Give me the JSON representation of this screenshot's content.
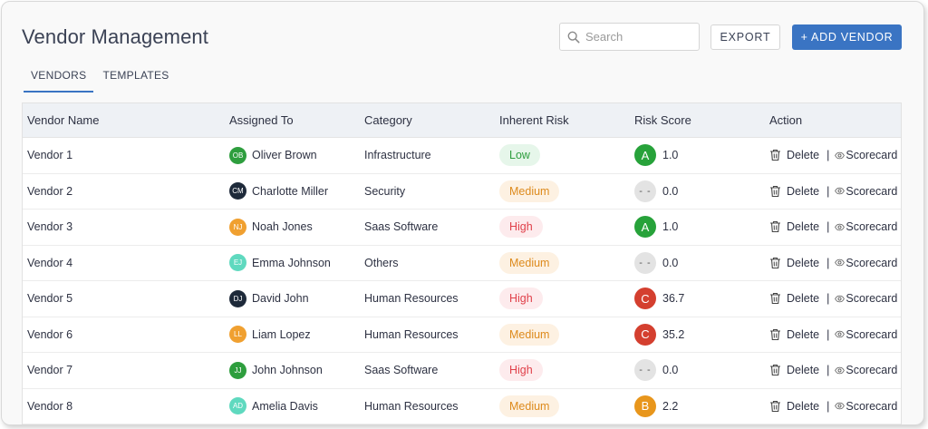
{
  "header": {
    "title": "Vendor Management",
    "search_placeholder": "Search",
    "export_label": "EXPORT",
    "add_label": "+ ADD VENDOR"
  },
  "tabs": [
    {
      "label": "VENDORS",
      "active": true
    },
    {
      "label": "TEMPLATES",
      "active": false
    }
  ],
  "table": {
    "columns": [
      "Vendor Name",
      "Assigned To",
      "Category",
      "Inherent Risk",
      "Risk Score",
      "Action"
    ],
    "delete_label": "Delete",
    "separator": "|",
    "scorecard_label": "Scorecard",
    "rows": [
      {
        "name": "Vendor 1",
        "initials": "OB",
        "assignee": "Oliver Brown",
        "avatar_color": "#2e9e3e",
        "category": "Infrastructure",
        "risk": "Low",
        "score_grade": "A",
        "score": "1.0"
      },
      {
        "name": "Vendor 2",
        "initials": "CM",
        "assignee": "Charlotte Miller",
        "avatar_color": "#1e2a3a",
        "category": "Security",
        "risk": "Medium",
        "score_grade": "- -",
        "score": "0.0"
      },
      {
        "name": "Vendor 3",
        "initials": "NJ",
        "assignee": "Noah Jones",
        "avatar_color": "#f0a030",
        "category": "Saas Software",
        "risk": "High",
        "score_grade": "A",
        "score": "1.0"
      },
      {
        "name": "Vendor 4",
        "initials": "EJ",
        "assignee": "Emma Johnson",
        "avatar_color": "#5fd9bf",
        "category": "Others",
        "risk": "Medium",
        "score_grade": "- -",
        "score": "0.0"
      },
      {
        "name": "Vendor 5",
        "initials": "DJ",
        "assignee": "David John",
        "avatar_color": "#1e2a3a",
        "category": "Human Resources",
        "risk": "High",
        "score_grade": "C",
        "score": "36.7"
      },
      {
        "name": "Vendor 6",
        "initials": "LL",
        "assignee": "Liam Lopez",
        "avatar_color": "#f0a030",
        "category": "Human Resources",
        "risk": "Medium",
        "score_grade": "C",
        "score": "35.2"
      },
      {
        "name": "Vendor 7",
        "initials": "JJ",
        "assignee": "John Johnson",
        "avatar_color": "#2e9e3e",
        "category": "Saas Software",
        "risk": "High",
        "score_grade": "- -",
        "score": "0.0"
      },
      {
        "name": "Vendor 8",
        "initials": "AD",
        "assignee": "Amelia Davis",
        "avatar_color": "#5fd9bf",
        "category": "Human Resources",
        "risk": "Medium",
        "score_grade": "B",
        "score": "2.2"
      }
    ]
  },
  "colors": {
    "accent": "#3a74c3",
    "risk_low_bg": "#e6f6ea",
    "risk_low_text": "#2e9e3e",
    "risk_medium_bg": "#fdf1e2",
    "risk_medium_text": "#dd8a1c",
    "risk_high_bg": "#fdebed",
    "risk_high_text": "#e0404a",
    "grade_A": "#27a23a",
    "grade_B": "#e8961c",
    "grade_C": "#d43f2f"
  },
  "icons": {
    "search": "search-icon",
    "delete": "trash-icon",
    "scorecard": "eye-icon"
  }
}
